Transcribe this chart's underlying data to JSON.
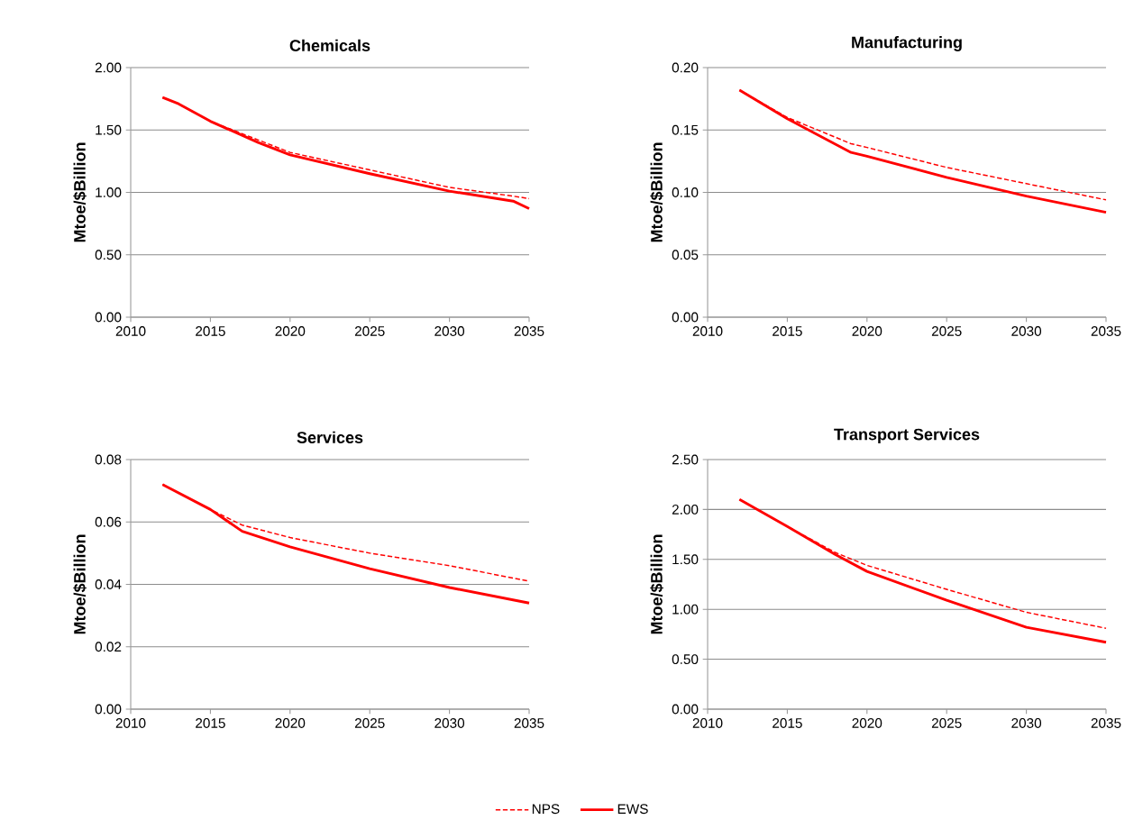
{
  "chart_data": [
    {
      "type": "line",
      "title": "Chemicals",
      "ylabel": "Mtoe/$Billion",
      "xlim": [
        2010,
        2035
      ],
      "xticks": [
        2010,
        2015,
        2020,
        2025,
        2030,
        2035
      ],
      "ylim": [
        0,
        2
      ],
      "yticks": [
        {
          "value": 0,
          "label": "0.00"
        },
        {
          "value": 0.5,
          "label": "0.50"
        },
        {
          "value": 1,
          "label": "1.00"
        },
        {
          "value": 1.5,
          "label": "1.50"
        },
        {
          "value": 2,
          "label": "2.00"
        }
      ],
      "grid": "y",
      "x": [
        2012,
        2013,
        2015,
        2018,
        2020,
        2025,
        2030,
        2034,
        2035
      ],
      "series": [
        {
          "color": "#ff0000",
          "line_style": "dashed",
          "values": [
            1.76,
            1.71,
            1.57,
            1.42,
            1.32,
            1.18,
            1.04,
            0.97,
            0.95
          ]
        },
        {
          "color": "#ff0000",
          "line_style": "solid",
          "values": [
            1.76,
            1.71,
            1.57,
            1.4,
            1.3,
            1.15,
            1.01,
            0.93,
            0.87
          ]
        }
      ]
    },
    {
      "type": "line",
      "title": "Manufacturing",
      "ylabel": "Mtoe/$Billion",
      "xlim": [
        2010,
        2035
      ],
      "xticks": [
        2010,
        2015,
        2020,
        2025,
        2030,
        2035
      ],
      "ylim": [
        0,
        0.2
      ],
      "yticks": [
        {
          "value": 0,
          "label": "0.00"
        },
        {
          "value": 0.05,
          "label": "0.05"
        },
        {
          "value": 0.1,
          "label": "0.10"
        },
        {
          "value": 0.15,
          "label": "0.15"
        },
        {
          "value": 0.2,
          "label": "0.20"
        }
      ],
      "grid": "y",
      "x": [
        2012,
        2015,
        2019,
        2020,
        2025,
        2030,
        2035
      ],
      "series": [
        {
          "color": "#ff0000",
          "line_style": "dashed",
          "values": [
            0.182,
            0.16,
            0.139,
            0.136,
            0.12,
            0.107,
            0.094
          ]
        },
        {
          "color": "#ff0000",
          "line_style": "solid",
          "values": [
            0.182,
            0.159,
            0.132,
            0.129,
            0.112,
            0.097,
            0.084
          ]
        }
      ]
    },
    {
      "type": "line",
      "title": "Services",
      "ylabel": "Mtoe/$Billion",
      "xlim": [
        2010,
        2035
      ],
      "xticks": [
        2010,
        2015,
        2020,
        2025,
        2030,
        2035
      ],
      "ylim": [
        0,
        0.08
      ],
      "yticks": [
        {
          "value": 0,
          "label": "0.00"
        },
        {
          "value": 0.02,
          "label": "0.02"
        },
        {
          "value": 0.04,
          "label": "0.04"
        },
        {
          "value": 0.06,
          "label": "0.06"
        },
        {
          "value": 0.08,
          "label": "0.08"
        }
      ],
      "grid": "y",
      "legend": "bottom",
      "x": [
        2012,
        2015,
        2017,
        2020,
        2025,
        2030,
        2035
      ],
      "series": [
        {
          "name": "NPS",
          "color": "#ff0000",
          "line_style": "dashed",
          "values": [
            0.072,
            0.064,
            0.059,
            0.055,
            0.05,
            0.046,
            0.041
          ]
        },
        {
          "name": "EWS",
          "color": "#ff0000",
          "line_style": "solid",
          "values": [
            0.072,
            0.064,
            0.057,
            0.052,
            0.045,
            0.039,
            0.034
          ]
        }
      ]
    },
    {
      "type": "line",
      "title": "Transport Services",
      "ylabel": "Mtoe/$Billion",
      "xlim": [
        2010,
        2035
      ],
      "xticks": [
        2010,
        2015,
        2020,
        2025,
        2030,
        2035
      ],
      "ylim": [
        0,
        2.5
      ],
      "yticks": [
        {
          "value": 0,
          "label": "0.00"
        },
        {
          "value": 0.5,
          "label": "0.50"
        },
        {
          "value": 1,
          "label": "1.00"
        },
        {
          "value": 1.5,
          "label": "1.50"
        },
        {
          "value": 2,
          "label": "2.00"
        },
        {
          "value": 2.5,
          "label": "2.50"
        }
      ],
      "grid": "y",
      "x": [
        2012,
        2015,
        2018,
        2020,
        2025,
        2030,
        2035
      ],
      "series": [
        {
          "color": "#ff0000",
          "line_style": "dashed",
          "values": [
            2.1,
            1.83,
            1.57,
            1.44,
            1.2,
            0.97,
            0.81
          ]
        },
        {
          "color": "#ff0000",
          "line_style": "solid",
          "values": [
            2.1,
            1.83,
            1.55,
            1.38,
            1.09,
            0.82,
            0.67
          ]
        }
      ]
    }
  ]
}
